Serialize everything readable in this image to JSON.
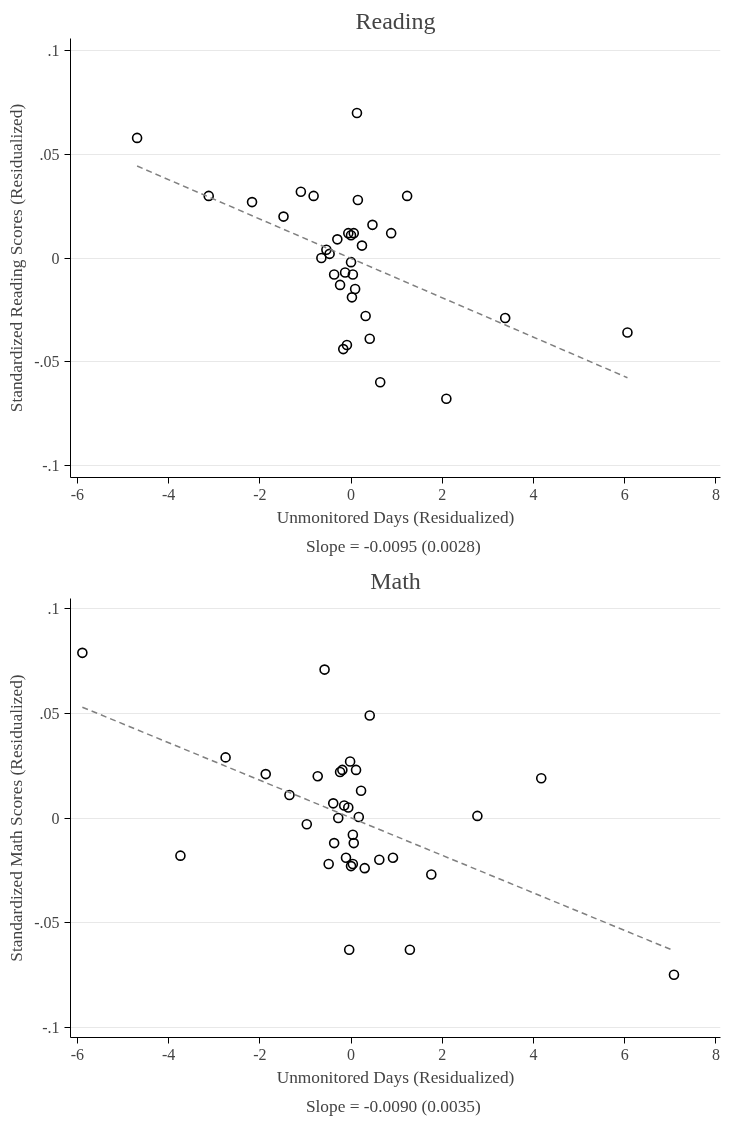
{
  "chart_data": [
    {
      "type": "scatter",
      "title": "Reading",
      "xlabel": "Unmonitored Days (Residualized)",
      "ylabel": "Standardized Reading Scores (Residualized)",
      "annotations": [
        "Slope =  -0.0095 (0.0028)"
      ],
      "xlim": [
        -6.15,
        8.1
      ],
      "ylim": [
        -0.106,
        0.106
      ],
      "xticks": [
        -6,
        -4,
        -2,
        0,
        2,
        4,
        6,
        8
      ],
      "yticks": [
        {
          "value": -0.1,
          "label": "-.1"
        },
        {
          "value": -0.05,
          "label": "-.05"
        },
        {
          "value": 0,
          "label": "0"
        },
        {
          "value": 0.05,
          "label": ".05"
        },
        {
          "value": 0.1,
          "label": ".1"
        }
      ],
      "grid": "y",
      "series": [
        {
          "color": "#000000",
          "marker": "circle",
          "x": [
            -4.69,
            -3.12,
            -2.17,
            -1.48,
            -1.1,
            -0.82,
            0.13,
            0.15,
            1.23,
            0.47,
            0.88,
            -0.3,
            -0.06,
            0.0,
            0.06,
            0.24,
            -0.54,
            -0.47,
            -0.65,
            0.0,
            -0.37,
            -0.13,
            0.04,
            -0.24,
            0.09,
            0.02,
            0.32,
            0.41,
            -0.17,
            -0.09,
            0.64,
            2.09,
            3.38,
            6.06
          ],
          "values": [
            0.058,
            0.03,
            0.027,
            0.02,
            0.032,
            0.03,
            0.07,
            0.028,
            0.03,
            0.016,
            0.012,
            0.009,
            0.012,
            0.011,
            0.012,
            0.006,
            0.004,
            0.002,
            0.0,
            -0.002,
            -0.008,
            -0.007,
            -0.008,
            -0.013,
            -0.015,
            -0.019,
            -0.028,
            -0.039,
            -0.044,
            -0.042,
            -0.06,
            -0.068,
            -0.029,
            -0.036
          ]
        },
        {
          "type": "line",
          "color": "#808080",
          "line_style": "dashed",
          "x": [
            -4.69,
            6.06
          ],
          "values": [
            0.0444,
            -0.0578
          ]
        }
      ]
    },
    {
      "type": "scatter",
      "title": "Math",
      "xlabel": "Unmonitored Days (Residualized)",
      "ylabel": "Standardized Math Scores (Residualized)",
      "annotations": [
        "Slope =  -0.0090 (0.0035)"
      ],
      "xlim": [
        -6.15,
        8.1
      ],
      "ylim": [
        -0.105,
        0.105
      ],
      "xticks": [
        -6,
        -4,
        -2,
        0,
        2,
        4,
        6,
        8
      ],
      "yticks": [
        {
          "value": -0.1,
          "label": "-.1"
        },
        {
          "value": -0.05,
          "label": "-.05"
        },
        {
          "value": 0,
          "label": "0"
        },
        {
          "value": 0.05,
          "label": ".05"
        },
        {
          "value": 0.1,
          "label": ".1"
        }
      ],
      "grid": "y",
      "series": [
        {
          "color": "#000000",
          "marker": "circle",
          "x": [
            -5.89,
            -3.74,
            -2.75,
            -1.87,
            -1.35,
            -0.97,
            -0.58,
            0.41,
            2.77,
            4.17,
            0.92,
            0.62,
            1.76,
            1.29,
            -0.04,
            7.08,
            -0.73,
            -0.24,
            -0.19,
            -0.02,
            0.11,
            0.22,
            -0.39,
            -0.15,
            -0.06,
            -0.28,
            0.17,
            0.04,
            0.06,
            -0.37,
            -0.11,
            0.04,
            0.0,
            -0.49,
            0.3
          ],
          "values": [
            0.079,
            -0.018,
            0.029,
            0.021,
            0.011,
            -0.003,
            0.071,
            0.049,
            0.001,
            0.019,
            -0.019,
            -0.02,
            -0.027,
            -0.063,
            -0.063,
            -0.075,
            0.02,
            0.022,
            0.023,
            0.027,
            0.023,
            0.013,
            0.007,
            0.006,
            0.005,
            0.0,
            0.0005,
            -0.008,
            -0.012,
            -0.012,
            -0.019,
            -0.022,
            -0.023,
            -0.022,
            -0.024
          ]
        },
        {
          "type": "line",
          "color": "#808080",
          "line_style": "dashed",
          "x": [
            -5.89,
            7.08
          ],
          "values": [
            0.053,
            -0.0635
          ]
        }
      ]
    }
  ]
}
